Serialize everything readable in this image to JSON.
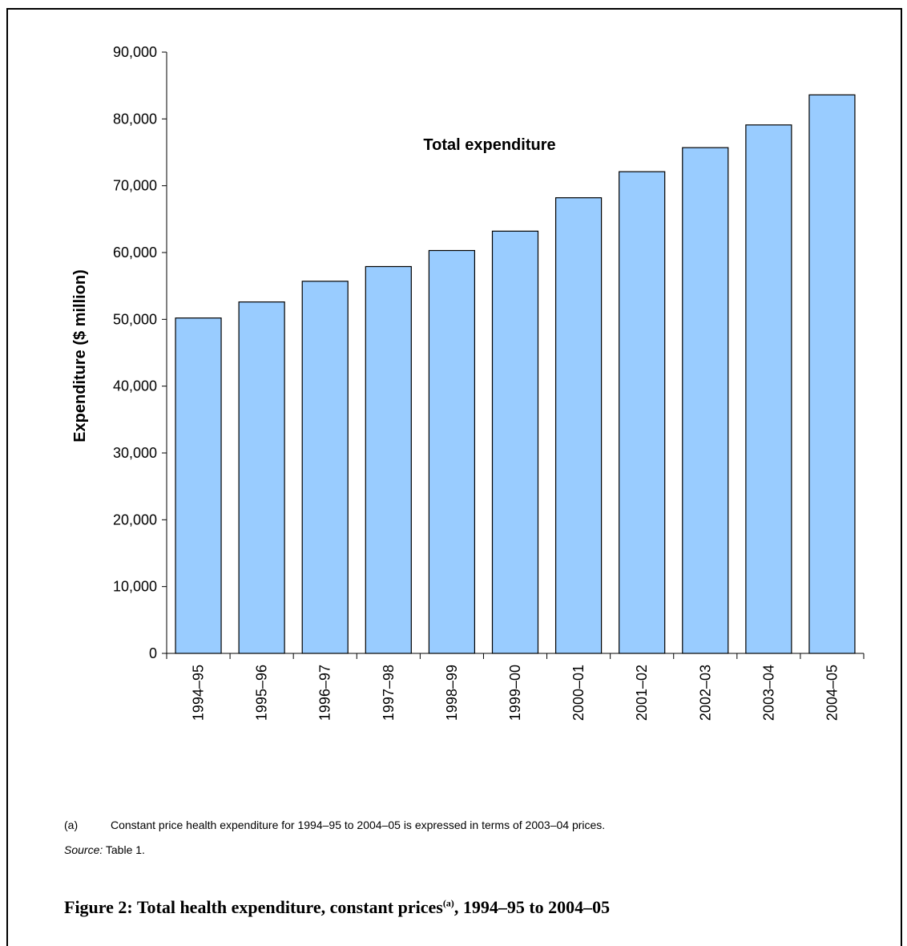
{
  "chart_data": {
    "type": "bar",
    "categories": [
      "1994–95",
      "1995–96",
      "1996–97",
      "1997–98",
      "1998–99",
      "1999–00",
      "2000–01",
      "2001–02",
      "2002–03",
      "2003–04",
      "2004–05"
    ],
    "values": [
      50200,
      52600,
      55700,
      57900,
      60300,
      63200,
      68200,
      72100,
      75700,
      79100,
      83600
    ],
    "ylabel": "Expenditure ($ million)",
    "xlabel": "",
    "ylim": [
      0,
      90000
    ],
    "yticks": [
      "0",
      "10,000",
      "20,000",
      "30,000",
      "40,000",
      "50,000",
      "60,000",
      "70,000",
      "80,000",
      "90,000"
    ],
    "annotation": "Total expenditure",
    "bar_color": "#99ccff",
    "grid": false,
    "legend": "none"
  },
  "note": {
    "marker": "(a)",
    "text": "Constant price health expenditure for 1994–95 to 2004–05 is expressed in terms of 2003–04 prices."
  },
  "source": {
    "label": "Source:",
    "text": "Table 1."
  },
  "caption": {
    "text": "Figure 2: Total health expenditure, constant prices",
    "sup": "(a)",
    "suffix": ", 1994–95 to 2004–05"
  }
}
